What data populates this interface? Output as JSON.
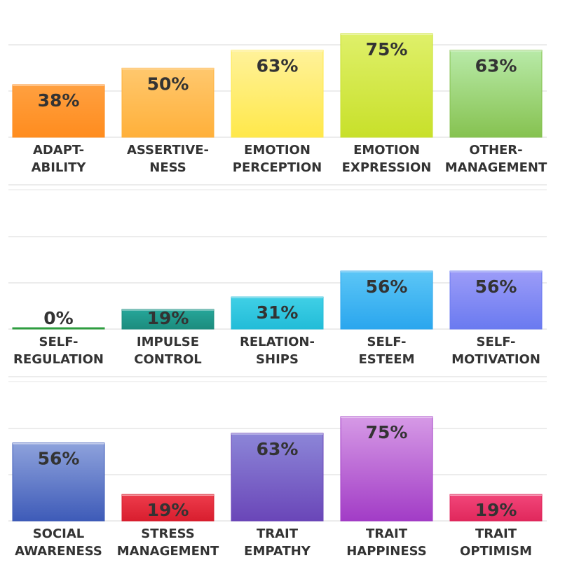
{
  "chart_data": [
    {
      "type": "bar",
      "categories": [
        "ADAPTABILITY",
        "ASSERTIVENESS",
        "EMOTION PERCEPTION",
        "EMOTION EXPRESSION",
        "OTHER-MANAGEMENT"
      ],
      "category_lines": [
        [
          "ADAPT-",
          "ABILITY"
        ],
        [
          "ASSERTIVE-",
          "NESS"
        ],
        [
          "EMOTION",
          "PERCEPTION"
        ],
        [
          "EMOTION",
          "EXPRESSION"
        ],
        [
          "OTHER-",
          "MANAGEMENT"
        ]
      ],
      "values": [
        38,
        50,
        63,
        75,
        63
      ],
      "value_labels": [
        "38%",
        "50%",
        "63%",
        "75%",
        "63%"
      ],
      "colors": [
        [
          "#ffa040",
          "#ff8c1e"
        ],
        [
          "#ffc86e",
          "#ffb03a"
        ],
        [
          "#fff29a",
          "#ffe84a"
        ],
        [
          "#dff06a",
          "#c8e02a"
        ],
        [
          "#b8eaa8",
          "#86c250"
        ]
      ],
      "ylim": [
        0,
        75
      ],
      "grid": true
    },
    {
      "type": "bar",
      "categories": [
        "SELF-REGULATION",
        "IMPULSE CONTROL",
        "RELATIONSHIPS",
        "SELF-ESTEEM",
        "SELF-MOTIVATION"
      ],
      "category_lines": [
        [
          "SELF-",
          "REGULATION"
        ],
        [
          "IMPULSE",
          "CONTROL"
        ],
        [
          "RELATION-",
          "SHIPS"
        ],
        [
          "SELF-",
          "ESTEEM"
        ],
        [
          "SELF-",
          "MOTIVATION"
        ]
      ],
      "values": [
        0,
        19,
        31,
        56,
        56
      ],
      "value_labels": [
        "0%",
        "19%",
        "31%",
        "56%",
        "56%"
      ],
      "colors": [
        [
          "#4caf50",
          "#2e9d3f"
        ],
        [
          "#26a69a",
          "#1c8c7e"
        ],
        [
          "#40d0e6",
          "#22bcd8"
        ],
        [
          "#5cc6f6",
          "#2aa6ee"
        ],
        [
          "#9c9cf8",
          "#6a7af0"
        ]
      ],
      "ylim": [
        0,
        75
      ],
      "grid": true
    },
    {
      "type": "bar",
      "categories": [
        "SOCIAL AWARENESS",
        "STRESS MANAGEMENT",
        "TRAIT EMPATHY",
        "TRAIT HAPPINESS",
        "TRAIT OPTIMISM"
      ],
      "category_lines": [
        [
          "SOCIAL",
          "AWARENESS"
        ],
        [
          "STRESS",
          "MANAGEMENT"
        ],
        [
          "TRAIT",
          "EMPATHY"
        ],
        [
          "TRAIT",
          "HAPPINESS"
        ],
        [
          "TRAIT",
          "OPTIMISM"
        ]
      ],
      "values": [
        56,
        19,
        63,
        75,
        19
      ],
      "value_labels": [
        "56%",
        "19%",
        "63%",
        "75%",
        "19%"
      ],
      "colors": [
        [
          "#8ea2dc",
          "#3e5bb8"
        ],
        [
          "#ee3c4c",
          "#d81e2e"
        ],
        [
          "#8c86d8",
          "#6a46b8"
        ],
        [
          "#d69ae6",
          "#a23cc6"
        ],
        [
          "#f2467a",
          "#e0285c"
        ]
      ],
      "ylim": [
        0,
        75
      ],
      "grid": true
    }
  ]
}
